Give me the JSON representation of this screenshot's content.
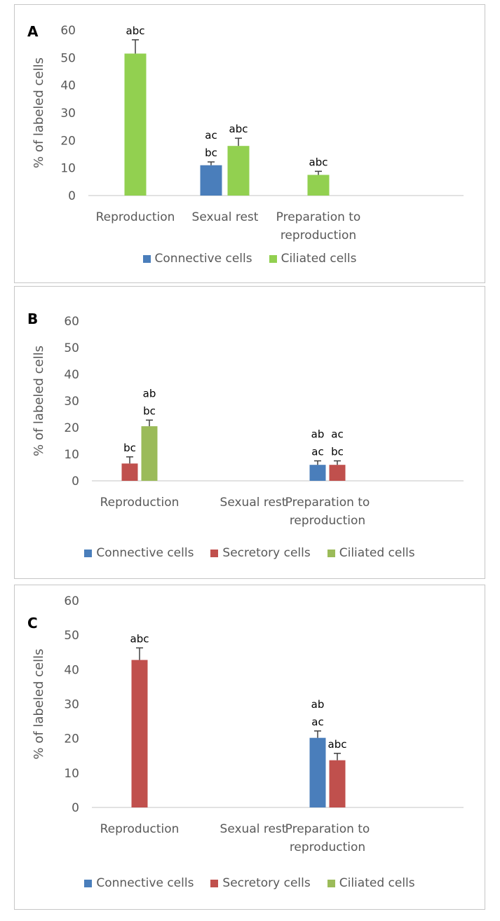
{
  "colors": {
    "connective": "#4a7ebb",
    "secretory": "#c0504d",
    "ciliated_a": "#92d050",
    "ciliated_b": "#9bbb59",
    "axis": "#d9d9d9",
    "tick_text": "#595959"
  },
  "legend": {
    "connective": "Connective cells",
    "secretory": "Secretory cells",
    "ciliated": "Ciliated cells"
  },
  "chart_data": [
    {
      "panel": "A",
      "type": "bar",
      "title": "",
      "ylabel": "% of labeled cells",
      "ylim": [
        0,
        60
      ],
      "yticks": [
        0,
        10,
        20,
        30,
        40,
        50,
        60
      ],
      "categories": [
        "Reproduction",
        "Sexual rest",
        "Preparation to reproduction"
      ],
      "category_lines": [
        [
          "Reproduction"
        ],
        [
          "Sexual rest"
        ],
        [
          "Preparation to",
          "reproduction"
        ]
      ],
      "legend_entries": [
        "connective",
        "ciliated"
      ],
      "series": [
        {
          "name": "Connective cells",
          "key": "connective",
          "values": [
            null,
            11,
            null
          ],
          "errors": [
            null,
            1.2,
            null
          ],
          "annotations": [
            null,
            [
              "ac",
              "bc"
            ],
            null
          ]
        },
        {
          "name": "Ciliated cells",
          "key": "ciliated_a",
          "values": [
            51.5,
            18,
            7.5
          ],
          "errors": [
            5,
            2.8,
            1.3
          ],
          "annotations": [
            [
              "abc"
            ],
            [
              "abc"
            ],
            [
              "abc"
            ]
          ]
        }
      ]
    },
    {
      "panel": "B",
      "type": "bar",
      "title": "",
      "ylabel": "% of labeled cells",
      "ylim": [
        0,
        60
      ],
      "yticks": [
        0,
        10,
        20,
        30,
        40,
        50,
        60
      ],
      "categories": [
        "Reproduction",
        "Sexual rest",
        "Preparation to reproduction"
      ],
      "category_lines": [
        [
          "Reproduction"
        ],
        [
          "Sexual rest"
        ],
        [
          "Preparation to",
          "reproduction"
        ]
      ],
      "legend_entries": [
        "connective",
        "secretory",
        "ciliated"
      ],
      "series": [
        {
          "name": "Connective cells",
          "key": "connective",
          "values": [
            null,
            null,
            6
          ],
          "errors": [
            null,
            null,
            1.5
          ],
          "annotations": [
            null,
            null,
            [
              "ab",
              "ac"
            ]
          ]
        },
        {
          "name": "Secretory cells",
          "key": "secretory",
          "values": [
            6.5,
            null,
            6
          ],
          "errors": [
            2.5,
            null,
            1.5
          ],
          "annotations": [
            [
              "bc"
            ],
            null,
            [
              "ac",
              "bc"
            ]
          ]
        },
        {
          "name": "Ciliated cells",
          "key": "ciliated_b",
          "values": [
            20.5,
            null,
            null
          ],
          "errors": [
            2.3,
            null,
            null
          ],
          "annotations": [
            [
              "ab",
              "bc"
            ],
            null,
            null
          ]
        }
      ]
    },
    {
      "panel": "C",
      "type": "bar",
      "title": "",
      "ylabel": "% of labeled cells",
      "ylim": [
        0,
        60
      ],
      "yticks": [
        0,
        10,
        20,
        30,
        40,
        50,
        60
      ],
      "categories": [
        "Reproduction",
        "Sexual rest",
        "Preparation to reproduction"
      ],
      "category_lines": [
        [
          "Reproduction"
        ],
        [
          "Sexual rest"
        ],
        [
          "Preparation to",
          "reproduction"
        ]
      ],
      "legend_entries": [
        "connective",
        "secretory",
        "ciliated"
      ],
      "series": [
        {
          "name": "Connective cells",
          "key": "connective",
          "values": [
            null,
            null,
            20.2
          ],
          "errors": [
            null,
            null,
            2
          ],
          "annotations": [
            null,
            null,
            [
              "ab",
              "ac"
            ]
          ]
        },
        {
          "name": "Secretory cells",
          "key": "secretory",
          "values": [
            42.8,
            null,
            13.7
          ],
          "errors": [
            3.5,
            null,
            2
          ],
          "annotations": [
            [
              "abc"
            ],
            null,
            [
              "abc"
            ]
          ]
        },
        {
          "name": "Ciliated cells",
          "key": "ciliated_b",
          "values": [
            null,
            null,
            null
          ],
          "errors": [
            null,
            null,
            null
          ],
          "annotations": [
            null,
            null,
            null
          ]
        }
      ]
    }
  ]
}
